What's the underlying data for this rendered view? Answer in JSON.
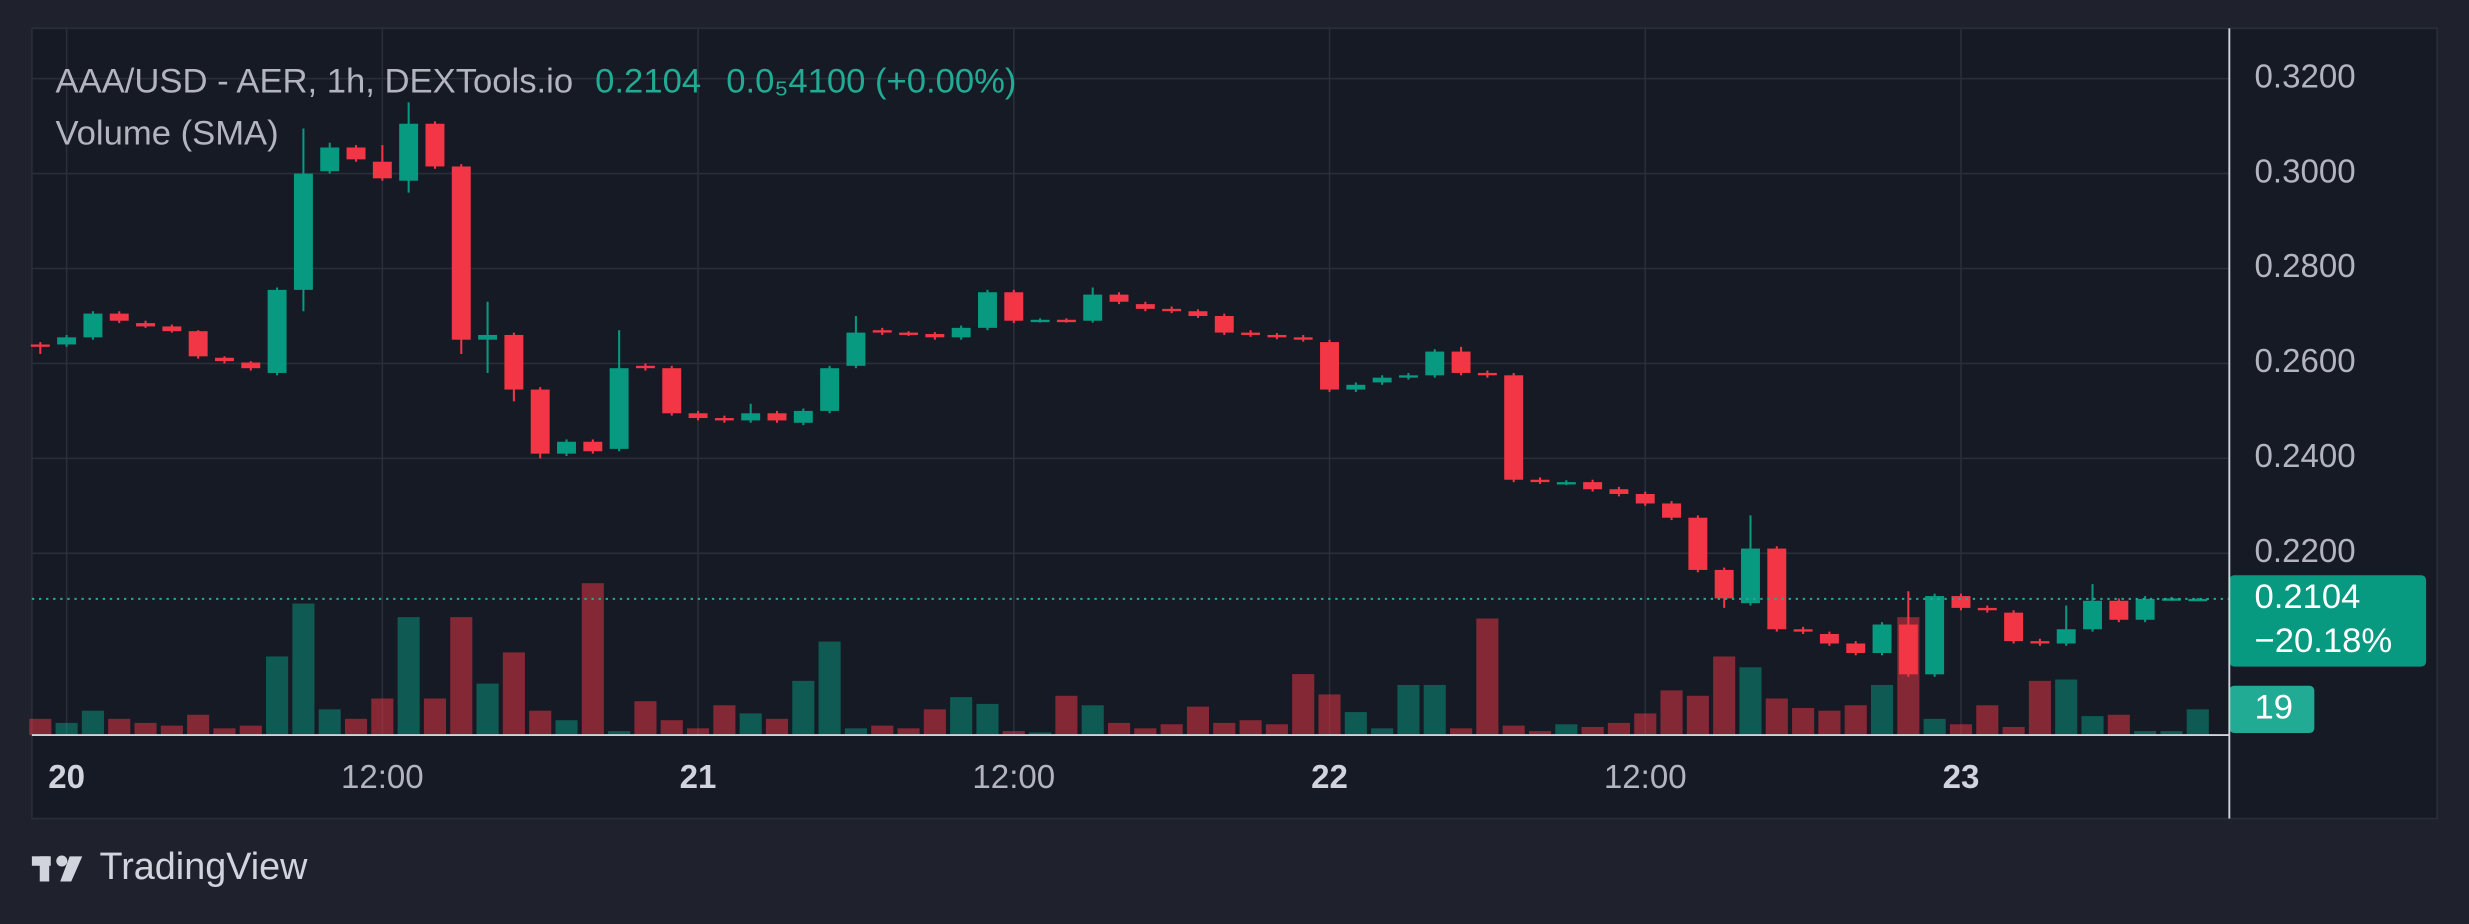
{
  "header": {
    "symbol": "AAA/USD - AER, 1h, DEXTools.io",
    "last": "0.2104",
    "change": "0.0₅4100 (+0.00%)",
    "indicator": "Volume (SMA)"
  },
  "chart_data": {
    "type": "candlestick",
    "x": [
      -1,
      0,
      1,
      2,
      3,
      4,
      5,
      6,
      7,
      8,
      9,
      10,
      11,
      12,
      13,
      14,
      15,
      16,
      17,
      18,
      19,
      20,
      21,
      22,
      23,
      24,
      25,
      26,
      27,
      28,
      29,
      30,
      31,
      32,
      33,
      34,
      35,
      36,
      37,
      38,
      39,
      40,
      41,
      42,
      43,
      44,
      45,
      46,
      47,
      48,
      49,
      50,
      51,
      52,
      53,
      54,
      55,
      56,
      57,
      58,
      59,
      60,
      61,
      62,
      63,
      64,
      65,
      66,
      67,
      68,
      69,
      70,
      71,
      72,
      73,
      74,
      75,
      76,
      77,
      78,
      79,
      80,
      81
    ],
    "open": [
      0.264,
      0.264,
      0.2655,
      0.2705,
      0.2685,
      0.2678,
      0.2668,
      0.2612,
      0.2602,
      0.258,
      0.2755,
      0.3005,
      0.3055,
      0.3025,
      0.2985,
      0.3105,
      0.3015,
      0.265,
      0.266,
      0.2545,
      0.241,
      0.2435,
      0.242,
      0.2595,
      0.259,
      0.2495,
      0.2485,
      0.248,
      0.2495,
      0.2475,
      0.25,
      0.2595,
      0.267,
      0.2665,
      0.2662,
      0.2655,
      0.2675,
      0.275,
      0.269,
      0.2692,
      0.269,
      0.2745,
      0.2725,
      0.2715,
      0.271,
      0.27,
      0.2665,
      0.266,
      0.2655,
      0.2645,
      0.2545,
      0.256,
      0.257,
      0.2575,
      0.2625,
      0.258,
      0.2575,
      0.2355,
      0.2348,
      0.235,
      0.2335,
      0.2325,
      0.2305,
      0.2275,
      0.2165,
      0.2095,
      0.221,
      0.204,
      0.203,
      0.201,
      0.199,
      0.205,
      0.1945,
      0.211,
      0.2085,
      0.2075,
      0.2015,
      0.201,
      0.204,
      0.21,
      0.206,
      0.2104,
      0.2104
    ],
    "high": [
      0.2645,
      0.266,
      0.271,
      0.271,
      0.269,
      0.2682,
      0.267,
      0.2615,
      0.2605,
      0.276,
      0.3095,
      0.3065,
      0.306,
      0.306,
      0.315,
      0.311,
      0.302,
      0.273,
      0.2665,
      0.255,
      0.244,
      0.244,
      0.267,
      0.26,
      0.2595,
      0.25,
      0.249,
      0.2515,
      0.25,
      0.2505,
      0.2595,
      0.27,
      0.2675,
      0.2668,
      0.2666,
      0.268,
      0.2755,
      0.2755,
      0.2695,
      0.2695,
      0.276,
      0.275,
      0.273,
      0.272,
      0.2714,
      0.2705,
      0.267,
      0.2664,
      0.266,
      0.265,
      0.256,
      0.2575,
      0.258,
      0.263,
      0.2635,
      0.2585,
      0.258,
      0.236,
      0.2354,
      0.2355,
      0.234,
      0.233,
      0.231,
      0.228,
      0.217,
      0.228,
      0.2215,
      0.2045,
      0.2035,
      0.2015,
      0.2055,
      0.212,
      0.2115,
      0.2115,
      0.209,
      0.208,
      0.202,
      0.209,
      0.2135,
      0.2105,
      0.211,
      0.2108,
      0.2106
    ],
    "low": [
      0.262,
      0.2635,
      0.265,
      0.2685,
      0.2675,
      0.2665,
      0.261,
      0.26,
      0.2585,
      0.2575,
      0.271,
      0.3,
      0.3025,
      0.2985,
      0.296,
      0.301,
      0.262,
      0.258,
      0.252,
      0.24,
      0.2405,
      0.241,
      0.2415,
      0.2585,
      0.249,
      0.248,
      0.2475,
      0.2475,
      0.2475,
      0.247,
      0.2495,
      0.259,
      0.266,
      0.2658,
      0.265,
      0.265,
      0.267,
      0.2685,
      0.2686,
      0.2686,
      0.2686,
      0.2725,
      0.271,
      0.2706,
      0.2696,
      0.266,
      0.2656,
      0.2651,
      0.2646,
      0.254,
      0.254,
      0.2555,
      0.2566,
      0.257,
      0.2575,
      0.257,
      0.235,
      0.2346,
      0.2344,
      0.233,
      0.232,
      0.23,
      0.227,
      0.216,
      0.2085,
      0.209,
      0.2035,
      0.203,
      0.2005,
      0.1985,
      0.1985,
      0.194,
      0.194,
      0.208,
      0.2075,
      0.201,
      0.2005,
      0.2005,
      0.2035,
      0.2055,
      0.2055,
      0.21,
      0.2102
    ],
    "close": [
      0.2635,
      0.2655,
      0.2705,
      0.269,
      0.2678,
      0.2668,
      0.2615,
      0.2605,
      0.259,
      0.2755,
      0.3,
      0.3055,
      0.303,
      0.299,
      0.3105,
      0.3015,
      0.265,
      0.266,
      0.2545,
      0.241,
      0.2435,
      0.2415,
      0.259,
      0.259,
      0.2495,
      0.2485,
      0.248,
      0.2495,
      0.248,
      0.25,
      0.259,
      0.2665,
      0.2665,
      0.2662,
      0.2655,
      0.2675,
      0.275,
      0.269,
      0.2692,
      0.269,
      0.2745,
      0.273,
      0.2715,
      0.271,
      0.27,
      0.2665,
      0.266,
      0.2655,
      0.265,
      0.2545,
      0.2555,
      0.257,
      0.2575,
      0.2625,
      0.258,
      0.2575,
      0.2355,
      0.235,
      0.235,
      0.2335,
      0.2325,
      0.2305,
      0.2275,
      0.2165,
      0.2105,
      0.221,
      0.204,
      0.2035,
      0.201,
      0.199,
      0.205,
      0.1945,
      0.211,
      0.2085,
      0.208,
      0.2015,
      0.201,
      0.204,
      0.21,
      0.206,
      0.2104,
      0.2105,
      0.2104
    ],
    "volume": [
      12,
      9,
      18,
      12,
      9,
      7,
      15,
      5,
      7,
      58,
      97,
      19,
      12,
      27,
      87,
      27,
      87,
      38,
      61,
      18,
      11,
      112,
      3,
      25,
      11,
      5,
      22,
      16,
      12,
      40,
      69,
      5,
      7,
      5,
      19,
      28,
      23,
      3,
      2,
      29,
      22,
      9,
      5,
      8,
      21,
      9,
      11,
      8,
      45,
      30,
      17,
      5,
      37,
      37,
      5,
      86,
      7,
      3,
      8,
      6,
      9,
      16,
      33,
      29,
      58,
      50,
      27,
      20,
      18,
      22,
      37,
      87,
      12,
      8,
      22,
      6,
      40,
      41,
      14,
      15,
      3,
      3,
      19
    ],
    "xlim": [
      -1.32,
      82.2
    ],
    "xticks": [
      {
        "value": 0,
        "label": "20"
      },
      {
        "value": 12,
        "label": "12:00"
      },
      {
        "value": 24,
        "label": "21"
      },
      {
        "value": 36,
        "label": "12:00"
      },
      {
        "value": 48,
        "label": "22"
      },
      {
        "value": 60,
        "label": "12:00"
      },
      {
        "value": 72,
        "label": "23"
      }
    ],
    "ylim": [
      0.1817,
      0.3306
    ],
    "yticks": [
      {
        "value": 0.22,
        "label": "0.2200"
      },
      {
        "value": 0.24,
        "label": "0.2400"
      },
      {
        "value": 0.26,
        "label": "0.2600"
      },
      {
        "value": 0.28,
        "label": "0.2800"
      },
      {
        "value": 0.3,
        "label": "0.3000"
      },
      {
        "value": 0.32,
        "label": "0.3200"
      }
    ],
    "volume_lim": [
      0,
      130
    ],
    "grid": true,
    "colors": {
      "up": "#089981",
      "down": "#f23645"
    },
    "last_price": {
      "value": 0.2104,
      "label": "0.2104"
    },
    "change_label": "−20.18%",
    "last_volume": 19
  },
  "footer": {
    "brand": "TradingView"
  }
}
